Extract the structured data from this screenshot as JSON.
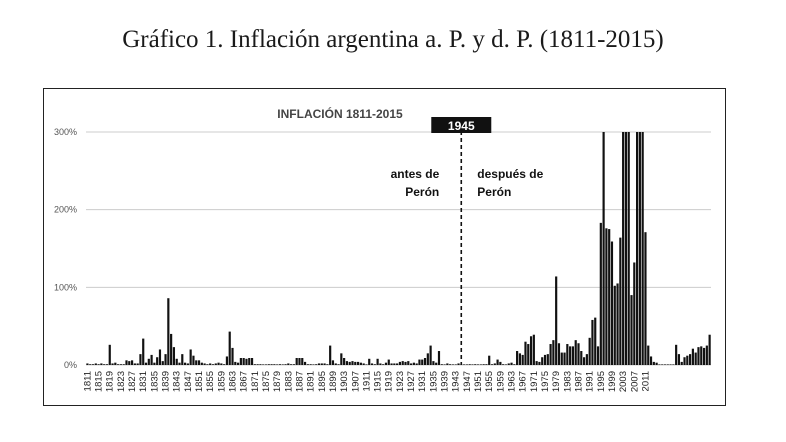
{
  "page": {
    "title": "Gráfico 1. Inflación argentina a. P. y d. P. (1811-2015)"
  },
  "chart_data": {
    "type": "bar",
    "title": "INFLACIÓN 1811-2015",
    "xlabel": "",
    "ylabel": "",
    "ylim": [
      0,
      3
    ],
    "yticks": [
      {
        "value": 0,
        "label": "0%"
      },
      {
        "value": 1,
        "label": "100%"
      },
      {
        "value": 2,
        "label": "200%"
      },
      {
        "value": 3,
        "label": "300%"
      }
    ],
    "x_tick_labels": [
      "1811",
      "1815",
      "1819",
      "1823",
      "1827",
      "1831",
      "1835",
      "1839",
      "1843",
      "1847",
      "1851",
      "1855",
      "1859",
      "1863",
      "1867",
      "1871",
      "1875",
      "1879",
      "1883",
      "1887",
      "1891",
      "1895",
      "1899",
      "1903",
      "1907",
      "1911",
      "1915",
      "1919",
      "1923",
      "1927",
      "1931",
      "1935",
      "1939",
      "1943",
      "1947",
      "1951",
      "1955",
      "1959",
      "1963",
      "1967",
      "1971",
      "1975",
      "1979",
      "1983",
      "1987",
      "1991",
      "1995",
      "1999",
      "2003",
      "2007",
      "2011"
    ],
    "grid": true,
    "bar_color": "#111111",
    "series": [
      {
        "x_start": 1811,
        "x_end": 2015,
        "values": [
          0.02,
          0.01,
          0.01,
          0.02,
          0.01,
          0.02,
          0.01,
          0.01,
          0.26,
          0.02,
          0.03,
          0.01,
          0.01,
          0.01,
          0.06,
          0.05,
          0.06,
          0.02,
          0.02,
          0.14,
          0.34,
          0.03,
          0.08,
          0.13,
          0.03,
          0.1,
          0.2,
          0.05,
          0.14,
          0.86,
          0.4,
          0.23,
          0.08,
          0.03,
          0.14,
          0.03,
          0.02,
          0.2,
          0.12,
          0.06,
          0.06,
          0.03,
          0.02,
          0.01,
          0.02,
          0.01,
          0.02,
          0.03,
          0.02,
          0.01,
          0.11,
          0.43,
          0.22,
          0.04,
          0.03,
          0.09,
          0.09,
          0.08,
          0.09,
          0.09,
          0.01,
          0.01,
          0.01,
          0.0,
          0.0,
          0.01,
          0.01,
          0.01,
          0.0,
          0.01,
          0.0,
          0.01,
          0.02,
          0.01,
          0.01,
          0.09,
          0.09,
          0.09,
          0.04,
          0.01,
          0.01,
          0.0,
          0.01,
          0.02,
          0.02,
          0.02,
          0.01,
          0.25,
          0.06,
          0.02,
          0.01,
          0.15,
          0.09,
          0.05,
          0.04,
          0.05,
          0.04,
          0.04,
          0.03,
          0.02,
          0.0,
          0.08,
          0.02,
          0.01,
          0.08,
          0.02,
          0.01,
          0.03,
          0.07,
          0.02,
          0.02,
          0.02,
          0.04,
          0.05,
          0.04,
          0.05,
          0.02,
          0.03,
          0.02,
          0.07,
          0.07,
          0.09,
          0.15,
          0.25,
          0.05,
          0.03,
          0.18,
          0.01,
          0.0,
          0.02,
          0.01,
          0.0,
          0.0,
          0.02,
          0.0,
          0.0,
          0.0,
          0.01,
          0.0,
          0.01,
          0.0,
          0.0,
          0.01,
          0.01,
          0.12,
          0.01,
          0.02,
          0.07,
          0.04,
          0.01,
          0.0,
          0.02,
          0.03,
          0.01,
          0.18,
          0.15,
          0.13,
          0.3,
          0.27,
          0.37,
          0.39,
          0.05,
          0.04,
          0.1,
          0.13,
          0.14,
          0.27,
          0.32,
          1.14,
          0.28,
          0.16,
          0.16,
          0.27,
          0.24,
          0.24,
          0.32,
          0.28,
          0.18,
          0.1,
          0.14,
          0.35,
          0.58,
          0.61,
          0.24,
          1.83,
          3.0,
          1.76,
          1.75,
          1.59,
          1.02,
          1.05,
          1.64,
          3.0,
          3.0,
          3.0,
          0.9,
          1.32,
          3.0,
          3.0,
          3.0,
          1.71,
          0.25,
          0.11,
          0.04,
          0.03,
          0.0,
          0.0,
          0.0,
          0.0,
          0.0,
          0.0,
          0.26,
          0.14,
          0.04,
          0.1,
          0.12,
          0.14,
          0.21,
          0.16,
          0.23,
          0.24,
          0.22,
          0.25,
          0.39
        ]
      }
    ],
    "annotations": {
      "marker_year": 1945,
      "marker_label": "1945",
      "left_label_line1": "antes de",
      "left_label_line2": "Perón",
      "right_label_line1": "después de",
      "right_label_line2": "Perón"
    }
  }
}
